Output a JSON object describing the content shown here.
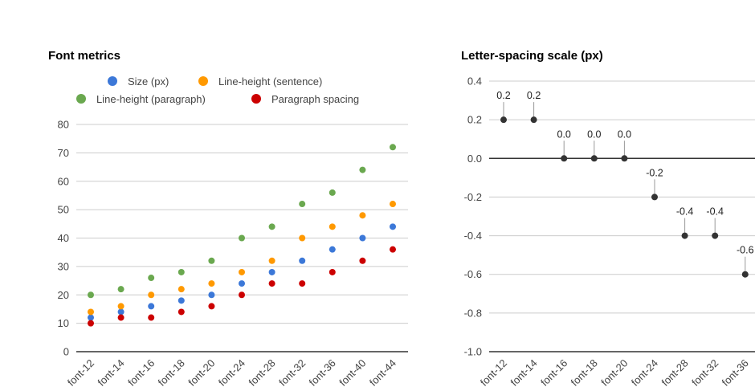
{
  "chart_data": [
    {
      "type": "scatter",
      "title": "Font metrics",
      "categories": [
        "font-12",
        "font-14",
        "font-16",
        "font-18",
        "font-20",
        "font-24",
        "font-28",
        "font-32",
        "font-36",
        "font-40",
        "font-44"
      ],
      "ylim": [
        0,
        80
      ],
      "yticks": [
        0,
        10,
        20,
        30,
        40,
        50,
        60,
        70,
        80
      ],
      "grid": true,
      "legend_position": "top",
      "series": [
        {
          "name": "Size (px)",
          "color": "#3c78d8",
          "values": [
            12,
            14,
            16,
            18,
            20,
            24,
            28,
            32,
            36,
            40,
            44
          ]
        },
        {
          "name": "Line-height (sentence)",
          "color": "#ff9900",
          "values": [
            14,
            16,
            20,
            22,
            24,
            28,
            32,
            40,
            44,
            48,
            52
          ]
        },
        {
          "name": "Line-height (paragraph)",
          "color": "#6aa84f",
          "values": [
            20,
            22,
            26,
            28,
            32,
            40,
            44,
            52,
            56,
            64,
            72
          ]
        },
        {
          "name": "Paragraph spacing",
          "color": "#cc0000",
          "values": [
            10,
            12,
            12,
            14,
            16,
            20,
            24,
            24,
            28,
            32,
            36
          ]
        }
      ]
    },
    {
      "type": "scatter",
      "title": "Letter-spacing scale (px)",
      "categories": [
        "font-12",
        "font-14",
        "font-16",
        "font-18",
        "font-20",
        "font-24",
        "font-28",
        "font-32",
        "font-36"
      ],
      "ylim": [
        -1.0,
        0.4
      ],
      "yticks": [
        -1.0,
        -0.8,
        -0.6,
        -0.4,
        -0.2,
        0.0,
        0.2,
        0.4
      ],
      "grid": true,
      "color": "#333333",
      "values": [
        0.2,
        0.2,
        0.0,
        0.0,
        0.0,
        -0.2,
        -0.4,
        -0.4,
        -0.6
      ],
      "data_labels": [
        "0.2",
        "0.2",
        "0.0",
        "0.0",
        "0.0",
        "-0.2",
        "-0.4",
        "-0.4",
        "-0.6"
      ]
    }
  ]
}
